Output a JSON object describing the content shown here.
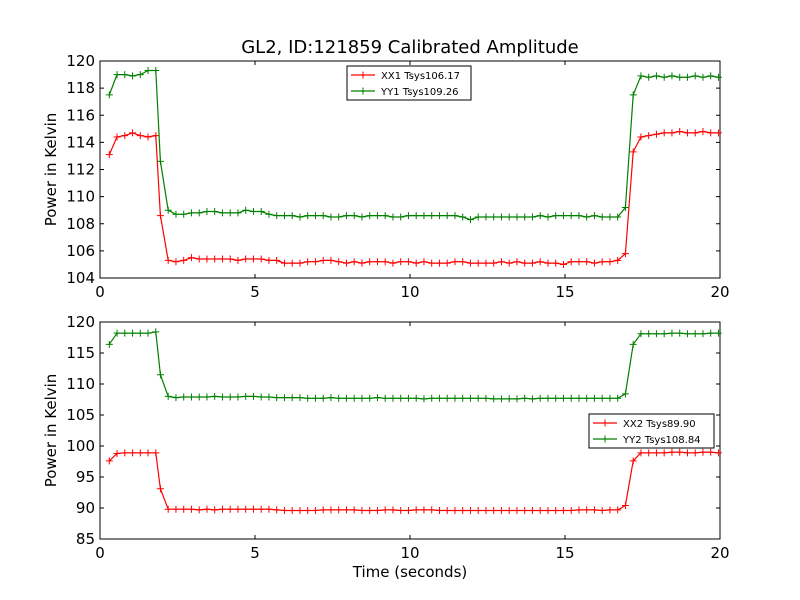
{
  "title": "GL2, ID:121859 Calibrated Amplitude",
  "chart_data": [
    {
      "type": "line",
      "title": "GL2, ID:121859 Calibrated Amplitude",
      "xlabel": "",
      "ylabel": "Power in Kelvin",
      "xlim": [
        0,
        20
      ],
      "ylim": [
        104,
        120
      ],
      "xticks": [
        "0",
        "5",
        "10",
        "15",
        "20"
      ],
      "yticks": [
        "104",
        "106",
        "108",
        "110",
        "112",
        "114",
        "116",
        "118",
        "120"
      ],
      "legend_position": "top-center",
      "x": [
        0.3,
        0.55,
        0.8,
        1.05,
        1.3,
        1.55,
        1.8,
        1.95,
        2.2,
        2.45,
        2.7,
        2.95,
        3.2,
        3.45,
        3.7,
        3.95,
        4.2,
        4.45,
        4.7,
        4.95,
        5.2,
        5.45,
        5.7,
        5.95,
        6.2,
        6.45,
        6.7,
        6.95,
        7.2,
        7.45,
        7.7,
        7.95,
        8.2,
        8.45,
        8.7,
        8.95,
        9.2,
        9.45,
        9.7,
        9.95,
        10.2,
        10.45,
        10.7,
        10.95,
        11.2,
        11.45,
        11.7,
        11.95,
        12.2,
        12.45,
        12.7,
        12.95,
        13.2,
        13.45,
        13.7,
        13.95,
        14.2,
        14.45,
        14.7,
        14.95,
        15.2,
        15.45,
        15.7,
        15.95,
        16.2,
        16.45,
        16.7,
        16.95,
        17.2,
        17.45,
        17.7,
        17.95,
        18.2,
        18.45,
        18.7,
        18.95,
        19.2,
        19.45,
        19.7,
        19.95
      ],
      "series": [
        {
          "name": "XX1 Tsys106.17",
          "color": "#ff0000",
          "values": [
            113.1,
            114.4,
            114.5,
            114.7,
            114.5,
            114.4,
            114.5,
            108.6,
            105.3,
            105.2,
            105.3,
            105.5,
            105.4,
            105.4,
            105.4,
            105.4,
            105.4,
            105.3,
            105.4,
            105.4,
            105.4,
            105.3,
            105.3,
            105.1,
            105.1,
            105.1,
            105.2,
            105.2,
            105.3,
            105.3,
            105.2,
            105.1,
            105.2,
            105.1,
            105.2,
            105.2,
            105.2,
            105.1,
            105.2,
            105.2,
            105.1,
            105.2,
            105.1,
            105.1,
            105.1,
            105.2,
            105.2,
            105.1,
            105.1,
            105.1,
            105.1,
            105.2,
            105.1,
            105.2,
            105.1,
            105.1,
            105.2,
            105.1,
            105.1,
            105.0,
            105.2,
            105.2,
            105.2,
            105.1,
            105.2,
            105.2,
            105.3,
            105.8,
            113.3,
            114.4,
            114.5,
            114.6,
            114.7,
            114.7,
            114.8,
            114.7,
            114.7,
            114.8,
            114.7,
            114.7
          ]
        },
        {
          "name": "YY1 Tsys109.26",
          "color": "#008000",
          "values": [
            117.5,
            119.0,
            119.0,
            118.9,
            119.0,
            119.3,
            119.3,
            112.6,
            109.0,
            108.7,
            108.7,
            108.8,
            108.8,
            108.9,
            108.9,
            108.8,
            108.8,
            108.8,
            109.0,
            108.9,
            108.9,
            108.7,
            108.6,
            108.6,
            108.6,
            108.5,
            108.6,
            108.6,
            108.6,
            108.5,
            108.5,
            108.6,
            108.6,
            108.5,
            108.6,
            108.6,
            108.6,
            108.5,
            108.5,
            108.6,
            108.6,
            108.6,
            108.6,
            108.6,
            108.6,
            108.6,
            108.5,
            108.3,
            108.5,
            108.5,
            108.5,
            108.5,
            108.5,
            108.5,
            108.5,
            108.5,
            108.6,
            108.5,
            108.6,
            108.6,
            108.6,
            108.6,
            108.5,
            108.6,
            108.5,
            108.5,
            108.5,
            109.2,
            117.5,
            118.9,
            118.8,
            118.9,
            118.8,
            118.9,
            118.8,
            118.8,
            118.9,
            118.8,
            118.9,
            118.8
          ]
        }
      ]
    },
    {
      "type": "line",
      "title": "",
      "xlabel": "Time (seconds)",
      "ylabel": "Power in Kelvin",
      "xlim": [
        0,
        20
      ],
      "ylim": [
        85,
        120
      ],
      "xticks": [
        "0",
        "5",
        "10",
        "15",
        "20"
      ],
      "yticks": [
        "85",
        "90",
        "95",
        "100",
        "105",
        "110",
        "115",
        "120"
      ],
      "legend_position": "center-right",
      "x": [
        0.3,
        0.55,
        0.8,
        1.05,
        1.3,
        1.55,
        1.8,
        1.95,
        2.2,
        2.45,
        2.7,
        2.95,
        3.2,
        3.45,
        3.7,
        3.95,
        4.2,
        4.45,
        4.7,
        4.95,
        5.2,
        5.45,
        5.7,
        5.95,
        6.2,
        6.45,
        6.7,
        6.95,
        7.2,
        7.45,
        7.7,
        7.95,
        8.2,
        8.45,
        8.7,
        8.95,
        9.2,
        9.45,
        9.7,
        9.95,
        10.2,
        10.45,
        10.7,
        10.95,
        11.2,
        11.45,
        11.7,
        11.95,
        12.2,
        12.45,
        12.7,
        12.95,
        13.2,
        13.45,
        13.7,
        13.95,
        14.2,
        14.45,
        14.7,
        14.95,
        15.2,
        15.45,
        15.7,
        15.95,
        16.2,
        16.45,
        16.7,
        16.95,
        17.2,
        17.45,
        17.7,
        17.95,
        18.2,
        18.45,
        18.7,
        18.95,
        19.2,
        19.45,
        19.7,
        19.95
      ],
      "series": [
        {
          "name": "XX2 Tsys89.90",
          "color": "#ff0000",
          "values": [
            97.6,
            98.8,
            98.9,
            98.9,
            98.9,
            98.9,
            98.9,
            93.1,
            89.8,
            89.8,
            89.8,
            89.8,
            89.7,
            89.8,
            89.7,
            89.8,
            89.8,
            89.8,
            89.8,
            89.8,
            89.8,
            89.8,
            89.7,
            89.6,
            89.6,
            89.6,
            89.6,
            89.6,
            89.7,
            89.7,
            89.7,
            89.7,
            89.7,
            89.6,
            89.6,
            89.6,
            89.7,
            89.7,
            89.6,
            89.6,
            89.7,
            89.7,
            89.7,
            89.6,
            89.6,
            89.6,
            89.6,
            89.6,
            89.6,
            89.6,
            89.6,
            89.6,
            89.6,
            89.6,
            89.6,
            89.6,
            89.6,
            89.6,
            89.6,
            89.6,
            89.6,
            89.7,
            89.7,
            89.7,
            89.6,
            89.7,
            89.7,
            90.4,
            97.6,
            98.9,
            98.9,
            98.9,
            98.9,
            99.0,
            99.0,
            98.9,
            98.9,
            99.0,
            99.0,
            98.9
          ]
        },
        {
          "name": "YY2 Tsys108.84",
          "color": "#008000",
          "values": [
            116.4,
            118.2,
            118.2,
            118.2,
            118.2,
            118.2,
            118.4,
            111.5,
            108.0,
            107.8,
            107.9,
            107.9,
            107.9,
            107.9,
            108.0,
            107.9,
            107.9,
            107.9,
            108.0,
            108.0,
            107.9,
            107.9,
            107.8,
            107.8,
            107.8,
            107.8,
            107.7,
            107.7,
            107.7,
            107.8,
            107.7,
            107.7,
            107.7,
            107.7,
            107.7,
            107.8,
            107.7,
            107.7,
            107.7,
            107.7,
            107.7,
            107.6,
            107.7,
            107.7,
            107.7,
            107.7,
            107.7,
            107.7,
            107.7,
            107.7,
            107.6,
            107.6,
            107.6,
            107.6,
            107.7,
            107.6,
            107.7,
            107.7,
            107.7,
            107.7,
            107.7,
            107.7,
            107.7,
            107.7,
            107.7,
            107.7,
            107.7,
            108.4,
            116.4,
            118.1,
            118.1,
            118.1,
            118.1,
            118.2,
            118.2,
            118.1,
            118.1,
            118.1,
            118.2,
            118.2
          ]
        }
      ]
    }
  ]
}
